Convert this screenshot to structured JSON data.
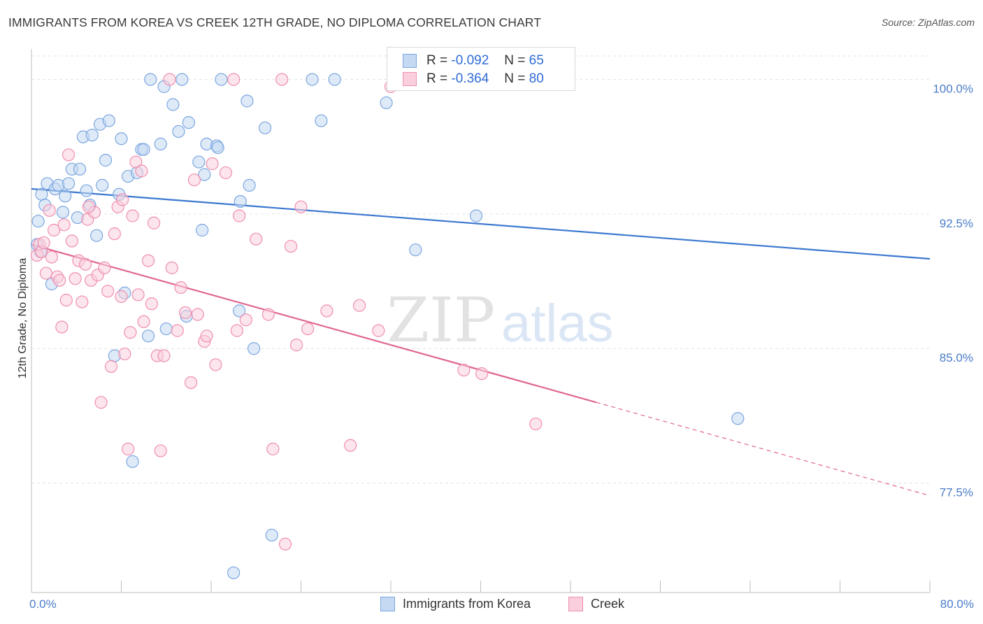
{
  "header": {
    "title": "IMMIGRANTS FROM KOREA VS CREEK 12TH GRADE, NO DIPLOMA CORRELATION CHART",
    "source": "Source: ZipAtlas.com"
  },
  "watermark": {
    "zip": "ZIP",
    "atlas": "atlas"
  },
  "legend": {
    "rows": [
      {
        "r_label": "R =",
        "r_value": "-0.092",
        "n_label": "N =",
        "n_value": "65",
        "color": "#7ba7e0",
        "fill": "#c5d9f3"
      },
      {
        "r_label": "R =",
        "r_value": "-0.364",
        "n_label": "N =",
        "n_value": "80",
        "color": "#ef8fb0",
        "fill": "#f9cfdd"
      }
    ]
  },
  "bottom_legend": [
    {
      "label": "Immigrants from Korea",
      "color": "#7ba7e0",
      "fill": "#c5d9f3"
    },
    {
      "label": "Creek",
      "color": "#ef8fb0",
      "fill": "#f9cfdd"
    }
  ],
  "chart_data": {
    "type": "scatter",
    "title": "IMMIGRANTS FROM KOREA VS CREEK 12TH GRADE, NO DIPLOMA CORRELATION CHART",
    "xlabel": "",
    "ylabel": "12th Grade, No Diploma",
    "xlim": [
      0,
      80
    ],
    "ylim": [
      71.4,
      101.7
    ],
    "x_tick_labels": [
      "0.0%",
      "80.0%"
    ],
    "y_ticks": [
      77.5,
      85.0,
      92.5,
      100.0
    ],
    "y_tick_labels": [
      "77.5%",
      "85.0%",
      "92.5%",
      "100.0%"
    ],
    "grid": true,
    "grid_style": "dashed horizontal",
    "legend_position": "top-center",
    "series": [
      {
        "name": "Immigrants from Korea",
        "color": "#3b78d0",
        "marker_fill": "#c5d9f3",
        "marker_edge": "#7ba7e0",
        "trend": {
          "x": [
            0,
            80
          ],
          "y": [
            93.9,
            90.0
          ]
        },
        "points": [
          [
            0.6,
            92.1
          ],
          [
            0.8,
            90.4
          ],
          [
            0.9,
            93.6
          ],
          [
            1.2,
            93.0
          ],
          [
            1.4,
            94.2
          ],
          [
            1.8,
            88.6
          ],
          [
            2.1,
            93.9
          ],
          [
            2.4,
            94.1
          ],
          [
            2.8,
            92.6
          ],
          [
            3.0,
            93.5
          ],
          [
            3.3,
            94.2
          ],
          [
            3.6,
            95.0
          ],
          [
            4.1,
            92.3
          ],
          [
            4.3,
            95.0
          ],
          [
            4.6,
            96.8
          ],
          [
            4.9,
            93.8
          ],
          [
            5.2,
            93.0
          ],
          [
            5.4,
            96.9
          ],
          [
            5.8,
            91.3
          ],
          [
            6.1,
            97.5
          ],
          [
            6.3,
            94.1
          ],
          [
            6.6,
            95.5
          ],
          [
            6.9,
            97.7
          ],
          [
            7.4,
            84.6
          ],
          [
            7.8,
            93.6
          ],
          [
            8.0,
            96.7
          ],
          [
            8.3,
            88.1
          ],
          [
            8.6,
            94.6
          ],
          [
            9.0,
            78.7
          ],
          [
            9.4,
            94.8
          ],
          [
            9.8,
            96.1
          ],
          [
            10.0,
            96.1
          ],
          [
            10.4,
            85.7
          ],
          [
            10.6,
            100.0
          ],
          [
            11.5,
            96.4
          ],
          [
            11.8,
            99.6
          ],
          [
            12.0,
            86.1
          ],
          [
            12.6,
            98.6
          ],
          [
            13.1,
            97.1
          ],
          [
            13.4,
            100.0
          ],
          [
            13.8,
            86.8
          ],
          [
            14.0,
            97.6
          ],
          [
            14.9,
            95.4
          ],
          [
            15.2,
            91.6
          ],
          [
            15.4,
            94.7
          ],
          [
            15.6,
            96.4
          ],
          [
            16.5,
            96.3
          ],
          [
            16.6,
            96.2
          ],
          [
            16.9,
            100.0
          ],
          [
            18.0,
            72.5
          ],
          [
            18.5,
            87.1
          ],
          [
            18.6,
            93.2
          ],
          [
            19.2,
            98.8
          ],
          [
            19.4,
            94.1
          ],
          [
            19.8,
            85.0
          ],
          [
            20.8,
            97.3
          ],
          [
            21.4,
            74.6
          ],
          [
            25.0,
            100.0
          ],
          [
            25.8,
            97.7
          ],
          [
            27.0,
            100.0
          ],
          [
            31.6,
            98.7
          ],
          [
            34.2,
            90.5
          ],
          [
            39.6,
            92.4
          ],
          [
            62.9,
            81.1
          ],
          [
            0.5,
            90.8
          ]
        ]
      },
      {
        "name": "Creek",
        "color": "#e0678f",
        "marker_fill": "#f9cfdd",
        "marker_edge": "#ef8fb0",
        "trend": {
          "x": [
            0,
            50.3
          ],
          "y": [
            90.8,
            82.0
          ]
        },
        "trend_dashed": {
          "x": [
            50.3,
            80
          ],
          "y": [
            82.0,
            76.8
          ]
        },
        "points": [
          [
            0.5,
            90.2
          ],
          [
            0.7,
            90.8
          ],
          [
            0.9,
            90.4
          ],
          [
            1.1,
            90.9
          ],
          [
            1.3,
            89.2
          ],
          [
            1.6,
            92.7
          ],
          [
            1.8,
            90.1
          ],
          [
            2.0,
            91.6
          ],
          [
            2.3,
            89.0
          ],
          [
            2.5,
            88.8
          ],
          [
            2.7,
            86.2
          ],
          [
            2.9,
            91.9
          ],
          [
            3.1,
            87.7
          ],
          [
            3.3,
            95.8
          ],
          [
            3.6,
            91.0
          ],
          [
            3.9,
            88.9
          ],
          [
            4.2,
            89.9
          ],
          [
            4.5,
            87.6
          ],
          [
            4.8,
            89.7
          ],
          [
            5.0,
            92.2
          ],
          [
            5.3,
            88.8
          ],
          [
            5.6,
            92.6
          ],
          [
            5.9,
            89.1
          ],
          [
            6.2,
            82.0
          ],
          [
            6.5,
            89.5
          ],
          [
            6.8,
            88.2
          ],
          [
            7.1,
            84.0
          ],
          [
            7.4,
            91.4
          ],
          [
            7.7,
            92.9
          ],
          [
            8.0,
            87.9
          ],
          [
            8.3,
            84.7
          ],
          [
            8.6,
            79.4
          ],
          [
            8.8,
            85.9
          ],
          [
            9.0,
            92.4
          ],
          [
            9.3,
            95.4
          ],
          [
            9.5,
            88.0
          ],
          [
            9.8,
            94.9
          ],
          [
            10.0,
            86.5
          ],
          [
            10.4,
            89.9
          ],
          [
            10.7,
            87.5
          ],
          [
            10.9,
            92.0
          ],
          [
            11.2,
            84.6
          ],
          [
            11.5,
            79.3
          ],
          [
            11.8,
            84.6
          ],
          [
            12.3,
            100.0
          ],
          [
            12.5,
            89.5
          ],
          [
            13.0,
            86.0
          ],
          [
            13.3,
            88.4
          ],
          [
            13.7,
            87.0
          ],
          [
            14.2,
            83.1
          ],
          [
            14.5,
            94.4
          ],
          [
            14.8,
            86.9
          ],
          [
            15.4,
            85.4
          ],
          [
            15.6,
            85.7
          ],
          [
            16.1,
            95.3
          ],
          [
            16.4,
            84.1
          ],
          [
            17.3,
            94.8
          ],
          [
            18.0,
            100.0
          ],
          [
            18.3,
            86.0
          ],
          [
            18.5,
            92.4
          ],
          [
            19.1,
            86.6
          ],
          [
            20.0,
            91.1
          ],
          [
            21.1,
            86.9
          ],
          [
            21.5,
            79.4
          ],
          [
            22.3,
            100.0
          ],
          [
            22.6,
            74.1
          ],
          [
            23.1,
            90.7
          ],
          [
            23.6,
            85.2
          ],
          [
            24.0,
            92.9
          ],
          [
            24.6,
            86.1
          ],
          [
            26.3,
            87.1
          ],
          [
            28.4,
            79.6
          ],
          [
            29.2,
            87.4
          ],
          [
            30.9,
            86.0
          ],
          [
            32.0,
            99.6
          ],
          [
            38.5,
            83.8
          ],
          [
            40.1,
            83.6
          ],
          [
            44.9,
            80.8
          ],
          [
            8.1,
            93.3
          ],
          [
            5.1,
            92.9
          ]
        ]
      }
    ]
  }
}
